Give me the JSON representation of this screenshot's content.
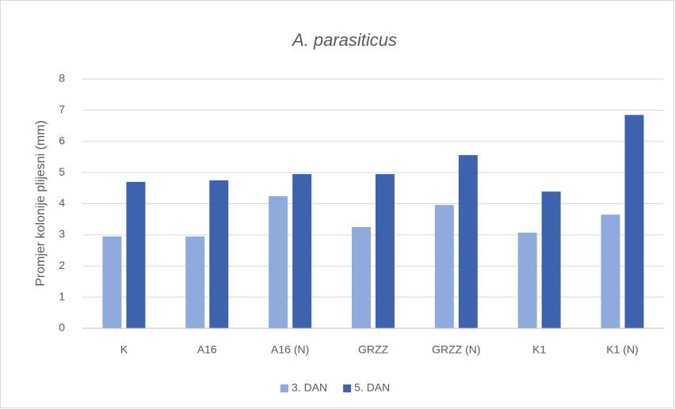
{
  "chart_data": {
    "type": "bar",
    "title": "A. parasiticus",
    "y_label": "Promjer kolonije plijesni (mm)",
    "categories": [
      "K",
      "A16",
      "A16 (N)",
      "GRZZ",
      "GRZZ (N)",
      "K1",
      "K1 (N)"
    ],
    "series": [
      {
        "name": "3. DAN",
        "color": "#8faadc",
        "values": [
          2.95,
          2.95,
          4.24,
          3.25,
          3.96,
          3.07,
          3.65
        ]
      },
      {
        "name": "5. DAN",
        "color": "#3d63ae",
        "values": [
          4.7,
          4.75,
          4.95,
          4.95,
          5.56,
          4.39,
          6.85
        ]
      }
    ],
    "ylim": [
      0,
      8
    ],
    "yticks": [
      0,
      1,
      2,
      3,
      4,
      5,
      6,
      7,
      8
    ],
    "grid": true,
    "legend": "bottom"
  }
}
